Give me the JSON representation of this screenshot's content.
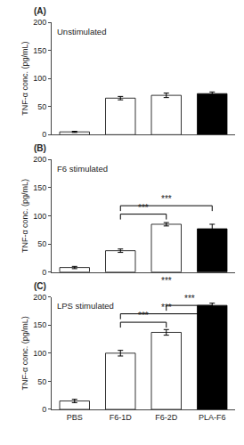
{
  "chart_data": [
    {
      "type": "bar",
      "title": "Unstimulated",
      "categories": [
        "PBS",
        "F6-1D",
        "F6-2D",
        "PLA-F6"
      ],
      "values": [
        5,
        65,
        70,
        73
      ],
      "errors": [
        1,
        3,
        4,
        3
      ],
      "colors": [
        "white",
        "white",
        "white",
        "black"
      ],
      "y_label": "TNF-α conc. (pg/mL)",
      "ylim": [
        0,
        200
      ],
      "yticks": [
        0,
        50,
        100,
        150,
        200
      ],
      "grid": false,
      "tick_labels": "y",
      "annotations": [
        {
          "text": "(A)"
        }
      ]
    },
    {
      "type": "bar",
      "title": "F6 stimulated",
      "categories": [
        "PBS",
        "F6-1D",
        "F6-2D",
        "PLA-F6"
      ],
      "values": [
        8,
        38,
        85,
        77
      ],
      "errors": [
        2,
        3,
        3,
        8
      ],
      "colors": [
        "white",
        "white",
        "white",
        "black"
      ],
      "y_label": "TNF-α conc. (pg/mL)",
      "ylim": [
        0,
        200
      ],
      "yticks": [
        0,
        50,
        100,
        150,
        200
      ],
      "grid": false,
      "tick_labels": "y",
      "annotations": [
        {
          "text": "(B)"
        },
        {
          "text": "***",
          "x": [
            "F6-1D",
            "F6-2D"
          ],
          "y": 103
        },
        {
          "text": "***",
          "x": [
            "F6-1D",
            "PLA-F6"
          ],
          "y": 118
        },
        {
          "text": "***",
          "x": "F6-2D"
        }
      ]
    },
    {
      "type": "bar",
      "title": "LPS stimulated",
      "categories": [
        "PBS",
        "F6-1D",
        "F6-2D",
        "PLA-F6"
      ],
      "values": [
        15,
        100,
        137,
        185
      ],
      "errors": [
        3,
        5,
        5,
        4
      ],
      "colors": [
        "white",
        "white",
        "white",
        "black"
      ],
      "y_label": "TNF-α conc. (pg/mL)",
      "ylim": [
        0,
        200
      ],
      "yticks": [
        0,
        50,
        100,
        150,
        200
      ],
      "grid": false,
      "annotations": [
        {
          "text": "(C)"
        },
        {
          "text": "***",
          "x": [
            "F6-1D",
            "F6-2D"
          ],
          "y": 155
        },
        {
          "text": "***",
          "x": [
            "F6-1D",
            "PLA-F6"
          ],
          "y": 170
        },
        {
          "text": "***",
          "x": [
            "F6-2D",
            "PLA-F6"
          ],
          "y": 185
        }
      ]
    }
  ]
}
